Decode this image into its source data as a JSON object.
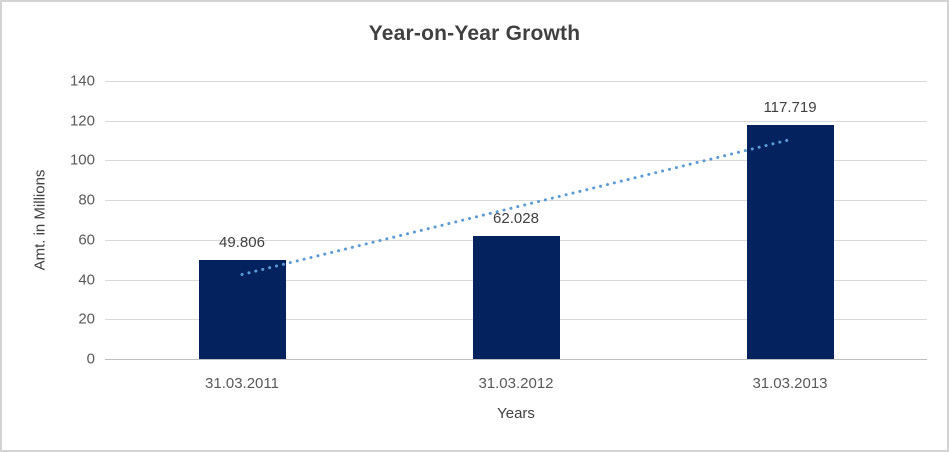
{
  "chart_data": {
    "type": "bar",
    "title": "Year-on-Year Growth",
    "xlabel": "Years",
    "ylabel": "Amt. in Millions",
    "categories": [
      "31.03.2011",
      "31.03.2012",
      "31.03.2013"
    ],
    "values": [
      49.806,
      62.028,
      117.719
    ],
    "data_labels": [
      "49.806",
      "62.028",
      "117.719"
    ],
    "ylim": [
      0,
      140
    ],
    "ytick_step": 20,
    "ytick_labels": [
      "0",
      "20",
      "40",
      "60",
      "80",
      "100",
      "120",
      "140"
    ],
    "grid": "horizontal-only",
    "legend": "none",
    "trendline": {
      "type": "linear",
      "style": "dotted",
      "endpoint_values": [
        42.56,
        110.47
      ]
    },
    "colors": {
      "bar": "#04225e",
      "trendline": "#5b9bd5",
      "gridline": "#d9d9d9",
      "axis_line": "#bfbfbf",
      "tick_label": "#595959",
      "title": "#404040",
      "data_label": "#404040",
      "chart_border": "#d3d3d3",
      "background": "#ffffff"
    }
  }
}
